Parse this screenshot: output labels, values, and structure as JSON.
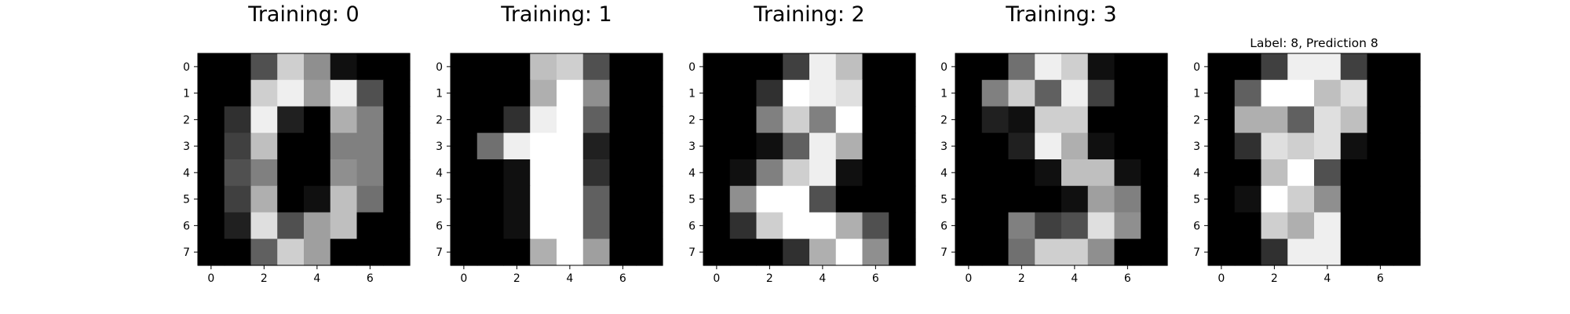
{
  "chart_data": [
    {
      "type": "heatmap",
      "title": "Training: 0",
      "colormap": "gray_r",
      "value_range": [
        0,
        16
      ],
      "x_ticks": [
        0,
        2,
        4,
        6
      ],
      "y_ticks": [
        0,
        1,
        2,
        3,
        4,
        5,
        6,
        7
      ],
      "pixels": [
        [
          0,
          0,
          5,
          13,
          9,
          1,
          0,
          0
        ],
        [
          0,
          0,
          13,
          15,
          10,
          15,
          5,
          0
        ],
        [
          0,
          3,
          15,
          2,
          0,
          11,
          8,
          0
        ],
        [
          0,
          4,
          12,
          0,
          0,
          8,
          8,
          0
        ],
        [
          0,
          5,
          8,
          0,
          0,
          9,
          8,
          0
        ],
        [
          0,
          4,
          11,
          0,
          1,
          12,
          7,
          0
        ],
        [
          0,
          2,
          14,
          5,
          10,
          12,
          0,
          0
        ],
        [
          0,
          0,
          6,
          13,
          10,
          0,
          0,
          0
        ]
      ]
    },
    {
      "type": "heatmap",
      "title": "Training: 1",
      "colormap": "gray_r",
      "value_range": [
        0,
        16
      ],
      "x_ticks": [
        0,
        2,
        4,
        6
      ],
      "y_ticks": [
        0,
        1,
        2,
        3,
        4,
        5,
        6,
        7
      ],
      "pixels": [
        [
          0,
          0,
          0,
          12,
          13,
          5,
          0,
          0
        ],
        [
          0,
          0,
          0,
          11,
          16,
          9,
          0,
          0
        ],
        [
          0,
          0,
          3,
          15,
          16,
          6,
          0,
          0
        ],
        [
          0,
          7,
          15,
          16,
          16,
          2,
          0,
          0
        ],
        [
          0,
          0,
          1,
          16,
          16,
          3,
          0,
          0
        ],
        [
          0,
          0,
          1,
          16,
          16,
          6,
          0,
          0
        ],
        [
          0,
          0,
          1,
          16,
          16,
          6,
          0,
          0
        ],
        [
          0,
          0,
          0,
          11,
          16,
          10,
          0,
          0
        ]
      ]
    },
    {
      "type": "heatmap",
      "title": "Training: 2",
      "colormap": "gray_r",
      "value_range": [
        0,
        16
      ],
      "x_ticks": [
        0,
        2,
        4,
        6
      ],
      "y_ticks": [
        0,
        1,
        2,
        3,
        4,
        5,
        6,
        7
      ],
      "pixels": [
        [
          0,
          0,
          0,
          4,
          15,
          12,
          0,
          0
        ],
        [
          0,
          0,
          3,
          16,
          15,
          14,
          0,
          0
        ],
        [
          0,
          0,
          8,
          13,
          8,
          16,
          0,
          0
        ],
        [
          0,
          0,
          1,
          6,
          15,
          11,
          0,
          0
        ],
        [
          0,
          1,
          8,
          13,
          15,
          1,
          0,
          0
        ],
        [
          0,
          9,
          16,
          16,
          5,
          0,
          0,
          0
        ],
        [
          0,
          3,
          13,
          16,
          16,
          11,
          5,
          0
        ],
        [
          0,
          0,
          0,
          3,
          11,
          16,
          9,
          0
        ]
      ]
    },
    {
      "type": "heatmap",
      "title": "Training: 3",
      "colormap": "gray_r",
      "value_range": [
        0,
        16
      ],
      "x_ticks": [
        0,
        2,
        4,
        6
      ],
      "y_ticks": [
        0,
        1,
        2,
        3,
        4,
        5,
        6,
        7
      ],
      "pixels": [
        [
          0,
          0,
          7,
          15,
          13,
          1,
          0,
          0
        ],
        [
          0,
          8,
          13,
          6,
          15,
          4,
          0,
          0
        ],
        [
          0,
          2,
          1,
          13,
          13,
          0,
          0,
          0
        ],
        [
          0,
          0,
          2,
          15,
          11,
          1,
          0,
          0
        ],
        [
          0,
          0,
          0,
          1,
          12,
          12,
          1,
          0
        ],
        [
          0,
          0,
          0,
          0,
          1,
          10,
          8,
          0
        ],
        [
          0,
          0,
          8,
          4,
          5,
          14,
          9,
          0
        ],
        [
          0,
          0,
          7,
          13,
          13,
          9,
          0,
          0
        ]
      ]
    },
    {
      "type": "heatmap",
      "title": "Label: 8, Prediction 8",
      "colormap": "gray_r",
      "value_range": [
        0,
        16
      ],
      "x_ticks": [
        0,
        2,
        4,
        6
      ],
      "y_ticks": [
        0,
        1,
        2,
        3,
        4,
        5,
        6,
        7
      ],
      "pixels": [
        [
          0,
          0,
          4,
          15,
          15,
          4,
          0,
          0
        ],
        [
          0,
          6,
          16,
          16,
          12,
          14,
          0,
          0
        ],
        [
          0,
          11,
          11,
          6,
          14,
          12,
          0,
          0
        ],
        [
          0,
          3,
          14,
          13,
          14,
          1,
          0,
          0
        ],
        [
          0,
          0,
          12,
          16,
          5,
          0,
          0,
          0
        ],
        [
          0,
          1,
          16,
          13,
          9,
          0,
          0,
          0
        ],
        [
          0,
          0,
          13,
          11,
          15,
          0,
          0,
          0
        ],
        [
          0,
          0,
          3,
          15,
          15,
          0,
          0,
          0
        ]
      ]
    }
  ]
}
